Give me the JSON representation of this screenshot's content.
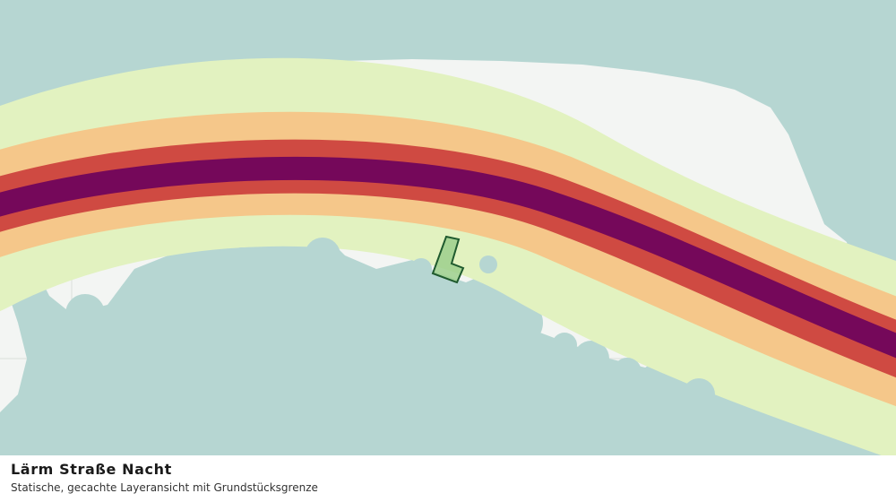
{
  "caption": {
    "title": "Lärm Straße Nacht",
    "subtitle": "Statische, gecachte Layeransicht mit Grundstücksgrenze"
  },
  "map": {
    "layer": "noise-road-night",
    "colors": {
      "background": "#f3f5f3",
      "land_cover": "#b6d6d2",
      "noise_band_outer": "#e2f2c0",
      "noise_band_mid": "#f5c78a",
      "noise_band_inner": "#cf4a42",
      "noise_band_core": "#75085a",
      "parcel_fill": "#9ccf8c",
      "parcel_stroke": "#1f5a2e",
      "grid_lines": "#e3e6e3"
    }
  }
}
